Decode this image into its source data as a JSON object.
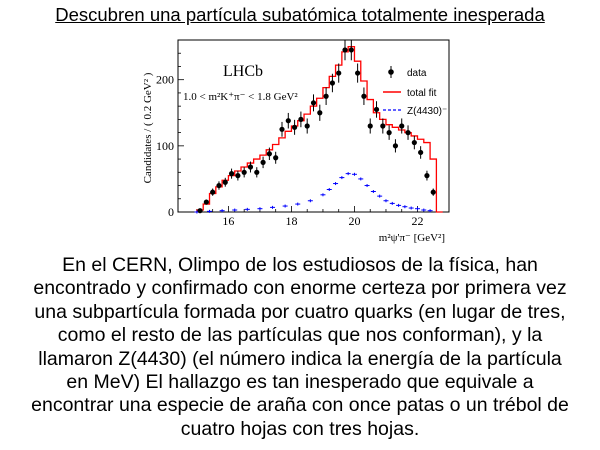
{
  "headline": "Descubren una partícula subatómica totalmente inesperada",
  "body_lines": [
    "En el CERN, Olimpo de los estudiosos de la física, han",
    "encontrado y confirmado con enorme certeza por primera vez",
    "una subpartícula formada por cuatro quarks (en lugar de tres,",
    "como el resto de las partículas que nos conforman), y la",
    "llamaron Z(4430) (el número indica la energía de la partícula",
    "en MeV) El hallazgo es tan inesperado que equivale a",
    "encontrar una especie de araña con once patas o un trébol de",
    "cuatro hojas con tres hojas."
  ],
  "chart_data": {
    "type": "line",
    "experiment_label": "LHCb",
    "cut_label": "1.0 < m²K⁺π⁻ < 1.8 GeV²",
    "xlabel": "m²ψ'π⁻ [GeV²]",
    "ylabel": "Candidates / ( 0.2 GeV² )",
    "xlim": [
      14.4,
      23.0
    ],
    "ylim": [
      0,
      260
    ],
    "x_ticks": [
      16,
      18,
      20,
      22
    ],
    "y_ticks": [
      0,
      100,
      200
    ],
    "legend": {
      "position": "top-right",
      "entries": [
        {
          "label": "data",
          "marker": "dot",
          "color": "#000000"
        },
        {
          "label": "total fit",
          "marker": "line",
          "color": "#ff0000"
        },
        {
          "label": "Z(4430)⁻",
          "marker": "dashed",
          "color": "#0000ff"
        }
      ]
    },
    "series": [
      {
        "name": "data",
        "color": "#000000",
        "x": [
          15.1,
          15.3,
          15.5,
          15.7,
          15.9,
          16.1,
          16.3,
          16.5,
          16.7,
          16.9,
          17.1,
          17.3,
          17.5,
          17.7,
          17.9,
          18.1,
          18.3,
          18.5,
          18.7,
          18.9,
          19.1,
          19.3,
          19.5,
          19.7,
          19.9,
          20.1,
          20.3,
          20.5,
          20.7,
          20.9,
          21.1,
          21.3,
          21.5,
          21.7,
          21.9,
          22.1,
          22.3,
          22.5
        ],
        "y": [
          2,
          15,
          30,
          40,
          45,
          58,
          55,
          60,
          68,
          60,
          75,
          88,
          82,
          125,
          138,
          128,
          140,
          130,
          165,
          150,
          175,
          195,
          210,
          245,
          245,
          210,
          175,
          130,
          155,
          130,
          120,
          100,
          130,
          120,
          105,
          90,
          55,
          30
        ]
      },
      {
        "name": "total fit",
        "color": "#ff0000",
        "x": [
          15.0,
          15.2,
          15.4,
          15.6,
          15.8,
          16.0,
          16.2,
          16.4,
          16.6,
          16.8,
          17.0,
          17.2,
          17.4,
          17.6,
          17.8,
          18.0,
          18.2,
          18.4,
          18.6,
          18.8,
          19.0,
          19.2,
          19.4,
          19.6,
          19.8,
          20.0,
          20.2,
          20.4,
          20.6,
          20.8,
          21.0,
          21.2,
          21.4,
          21.6,
          21.8,
          22.0,
          22.2,
          22.4,
          22.6
        ],
        "y": [
          3,
          12,
          28,
          38,
          48,
          55,
          62,
          68,
          74,
          80,
          86,
          94,
          102,
          112,
          122,
          130,
          138,
          148,
          160,
          172,
          188,
          205,
          222,
          242,
          250,
          228,
          198,
          170,
          150,
          140,
          132,
          128,
          124,
          120,
          115,
          110,
          105,
          80,
          0
        ]
      },
      {
        "name": "Z(4430)⁻",
        "color": "#0000ff",
        "x": [
          15.0,
          15.4,
          15.8,
          16.2,
          16.6,
          17.0,
          17.4,
          17.8,
          18.2,
          18.6,
          19.0,
          19.2,
          19.4,
          19.6,
          19.8,
          20.0,
          20.2,
          20.4,
          20.6,
          20.8,
          21.0,
          21.2,
          21.4,
          21.6,
          21.8,
          22.0,
          22.2,
          22.4
        ],
        "y": [
          0,
          1,
          2,
          3,
          4,
          5,
          7,
          9,
          12,
          17,
          26,
          34,
          43,
          52,
          58,
          57,
          50,
          40,
          31,
          24,
          17,
          13,
          10,
          8,
          6,
          5,
          3,
          2
        ]
      }
    ]
  }
}
